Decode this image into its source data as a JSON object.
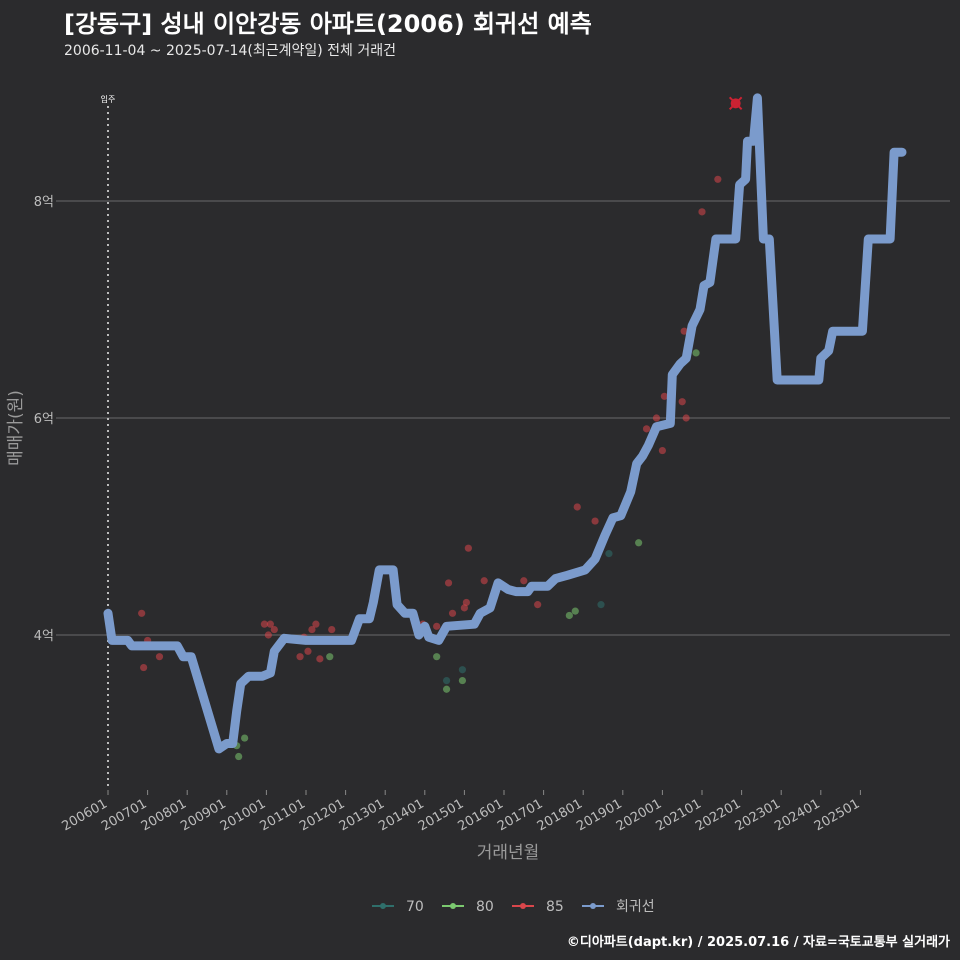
{
  "header": {
    "title": "[강동구] 성내 이안강동 아파트(2006) 회귀선 예측",
    "subtitle": "2006-11-04 ~ 2025-07-14(최근계약일) 전체 거래건"
  },
  "footer": {
    "caption": "©디아파트(dapt.kr) / 2025.07.16 / 자료=국토교통부 실거래가"
  },
  "colors": {
    "background": "#2b2b2d",
    "grid": "#6a6a6a",
    "s70": "#2f6f6b",
    "s80": "#7bc96f",
    "s85": "#d9464b",
    "regression": "#7b9bcc",
    "marker": "#cc2233"
  },
  "chart_data": {
    "type": "scatter",
    "xlabel": "거래년월",
    "ylabel": "매매가(원)",
    "x_ticks": [
      "200601",
      "200701",
      "200801",
      "200901",
      "201001",
      "201101",
      "201201",
      "201301",
      "201401",
      "201501",
      "201601",
      "201701",
      "201801",
      "201901",
      "202001",
      "202101",
      "202201",
      "202301",
      "202401",
      "202501"
    ],
    "y_ticks": [
      {
        "value": 4,
        "label": "4억"
      },
      {
        "value": 6,
        "label": "6억"
      },
      {
        "value": 8,
        "label": "8억"
      }
    ],
    "ylim": [
      2.65,
      9.4
    ],
    "xlim": [
      2006.0,
      2025.75
    ],
    "annotation": {
      "x": 2006.0,
      "label": "입주"
    },
    "legend": [
      "70",
      "80",
      "85",
      "회귀선"
    ],
    "series": [
      {
        "name": "70",
        "points": [
          [
            2014.55,
            3.58
          ],
          [
            2014.95,
            3.68
          ],
          [
            2018.45,
            4.28
          ],
          [
            2018.65,
            4.75
          ]
        ]
      },
      {
        "name": "80",
        "points": [
          [
            2009.25,
            2.98
          ],
          [
            2009.3,
            2.88
          ],
          [
            2009.45,
            3.05
          ],
          [
            2011.6,
            3.8
          ],
          [
            2014.3,
            3.8
          ],
          [
            2014.55,
            3.5
          ],
          [
            2014.95,
            3.58
          ],
          [
            2017.65,
            4.18
          ],
          [
            2017.8,
            4.22
          ],
          [
            2019.4,
            4.85
          ],
          [
            2020.85,
            6.6
          ]
        ]
      },
      {
        "name": "85",
        "points": [
          [
            2006.85,
            4.2
          ],
          [
            2006.9,
            3.7
          ],
          [
            2007.0,
            3.95
          ],
          [
            2007.3,
            3.8
          ],
          [
            2009.95,
            4.1
          ],
          [
            2010.05,
            4.0
          ],
          [
            2010.2,
            4.05
          ],
          [
            2010.1,
            4.1
          ],
          [
            2010.85,
            3.8
          ],
          [
            2010.95,
            3.98
          ],
          [
            2011.05,
            3.85
          ],
          [
            2011.15,
            4.05
          ],
          [
            2011.25,
            4.1
          ],
          [
            2011.35,
            3.78
          ],
          [
            2011.65,
            4.05
          ],
          [
            2013.95,
            4.1
          ],
          [
            2014.3,
            4.08
          ],
          [
            2014.6,
            4.48
          ],
          [
            2014.7,
            4.2
          ],
          [
            2015.0,
            4.25
          ],
          [
            2015.05,
            4.3
          ],
          [
            2015.1,
            4.8
          ],
          [
            2015.5,
            4.5
          ],
          [
            2016.5,
            4.5
          ],
          [
            2016.85,
            4.28
          ],
          [
            2017.85,
            5.18
          ],
          [
            2018.3,
            5.05
          ],
          [
            2019.6,
            5.9
          ],
          [
            2019.85,
            6.0
          ],
          [
            2020.0,
            5.7
          ],
          [
            2020.05,
            6.2
          ],
          [
            2020.5,
            6.15
          ],
          [
            2020.6,
            6.0
          ],
          [
            2020.55,
            6.8
          ],
          [
            2021.0,
            7.9
          ],
          [
            2021.4,
            8.2
          ],
          [
            2021.85,
            8.9
          ]
        ]
      },
      {
        "name": "회귀선",
        "points": [
          [
            2006.0,
            4.2
          ],
          [
            2006.1,
            3.95
          ],
          [
            2006.5,
            3.95
          ],
          [
            2006.6,
            3.9
          ],
          [
            2007.6,
            3.9
          ],
          [
            2007.75,
            3.9
          ],
          [
            2007.9,
            3.8
          ],
          [
            2008.1,
            3.8
          ],
          [
            2008.8,
            2.95
          ],
          [
            2009.0,
            3.0
          ],
          [
            2009.15,
            3.0
          ],
          [
            2009.25,
            3.3
          ],
          [
            2009.35,
            3.55
          ],
          [
            2009.55,
            3.62
          ],
          [
            2009.9,
            3.62
          ],
          [
            2010.1,
            3.65
          ],
          [
            2010.2,
            3.85
          ],
          [
            2010.45,
            3.97
          ],
          [
            2011.0,
            3.95
          ],
          [
            2012.15,
            3.95
          ],
          [
            2012.35,
            4.15
          ],
          [
            2012.6,
            4.15
          ],
          [
            2012.7,
            4.3
          ],
          [
            2012.85,
            4.6
          ],
          [
            2013.2,
            4.6
          ],
          [
            2013.3,
            4.28
          ],
          [
            2013.5,
            4.2
          ],
          [
            2013.7,
            4.2
          ],
          [
            2013.85,
            4.0
          ],
          [
            2014.0,
            4.08
          ],
          [
            2014.1,
            3.98
          ],
          [
            2014.35,
            3.95
          ],
          [
            2014.55,
            4.08
          ],
          [
            2015.25,
            4.1
          ],
          [
            2015.4,
            4.2
          ],
          [
            2015.65,
            4.25
          ],
          [
            2015.85,
            4.48
          ],
          [
            2016.1,
            4.42
          ],
          [
            2016.3,
            4.4
          ],
          [
            2016.6,
            4.4
          ],
          [
            2016.7,
            4.45
          ],
          [
            2017.1,
            4.45
          ],
          [
            2017.3,
            4.52
          ],
          [
            2017.6,
            4.55
          ],
          [
            2018.05,
            4.6
          ],
          [
            2018.3,
            4.7
          ],
          [
            2018.55,
            4.92
          ],
          [
            2018.75,
            5.08
          ],
          [
            2018.95,
            5.1
          ],
          [
            2019.2,
            5.32
          ],
          [
            2019.35,
            5.58
          ],
          [
            2019.5,
            5.65
          ],
          [
            2019.65,
            5.75
          ],
          [
            2019.85,
            5.92
          ],
          [
            2020.2,
            5.95
          ],
          [
            2020.25,
            6.4
          ],
          [
            2020.45,
            6.5
          ],
          [
            2020.6,
            6.55
          ],
          [
            2020.75,
            6.85
          ],
          [
            2020.95,
            7.0
          ],
          [
            2021.05,
            7.22
          ],
          [
            2021.2,
            7.25
          ],
          [
            2021.35,
            7.65
          ],
          [
            2021.85,
            7.65
          ],
          [
            2021.95,
            8.15
          ],
          [
            2022.1,
            8.2
          ],
          [
            2022.15,
            8.55
          ],
          [
            2022.3,
            8.55
          ],
          [
            2022.4,
            8.95
          ],
          [
            2022.55,
            7.65
          ],
          [
            2022.7,
            7.65
          ],
          [
            2022.9,
            6.35
          ],
          [
            2023.95,
            6.35
          ],
          [
            2024.0,
            6.55
          ],
          [
            2024.2,
            6.62
          ],
          [
            2024.3,
            6.8
          ],
          [
            2025.05,
            6.8
          ],
          [
            2025.2,
            7.65
          ],
          [
            2025.75,
            7.65
          ],
          [
            2025.85,
            8.45
          ],
          [
            2026.05,
            8.45
          ]
        ]
      }
    ]
  }
}
